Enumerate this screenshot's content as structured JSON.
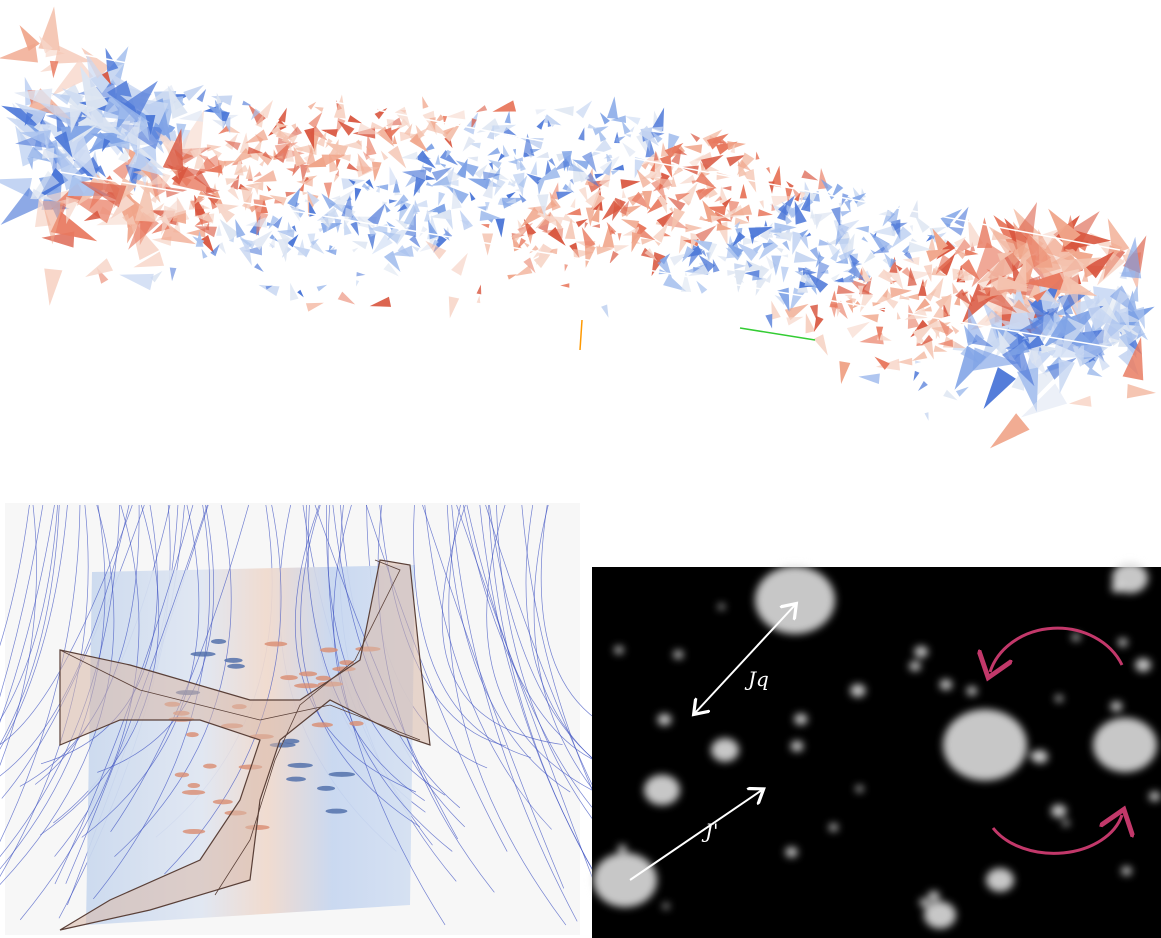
{
  "panels": {
    "particles": {
      "arrow_labels": [
        "Jq",
        "J'"
      ]
    }
  }
}
